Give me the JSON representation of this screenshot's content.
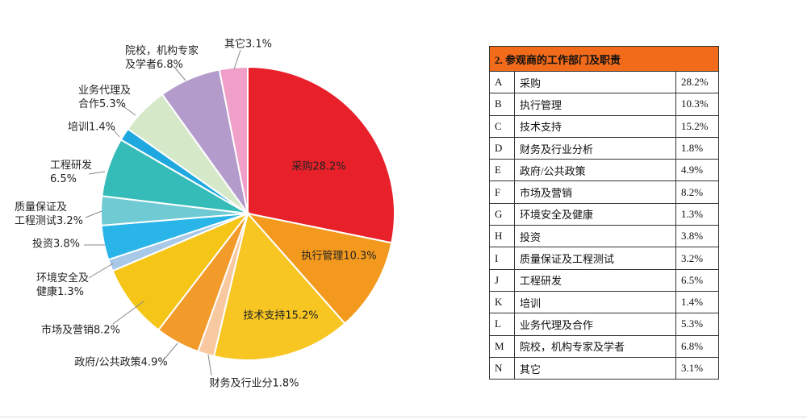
{
  "chart_data": {
    "type": "pie",
    "values": [
      28.2,
      10.3,
      15.2,
      1.8,
      4.9,
      8.2,
      1.3,
      3.8,
      3.2,
      6.5,
      1.4,
      5.3,
      6.8,
      3.1
    ],
    "value_labels": [
      "采购28.2%",
      "执行管理10.3%",
      "技术支持15.2%",
      "财务及行业分1.8%",
      "政府/公共政策4.9%",
      "市场及营销8.2%",
      "环境安全及\n健康1.3%",
      "投资3.8%",
      "质量保证及\n工程测试3.2%",
      "工程研发\n6.5%",
      "培训1.4%",
      "业务代理及\n合作5.3%",
      "院校，机构专家\n及学者6.8%",
      "其它3.1%"
    ],
    "colors": [
      "#e8202a",
      "#f39a1e",
      "#f7c623",
      "#f8c9a0",
      "#f29a2a",
      "#f5c518",
      "#a8c8e8",
      "#29b5e8",
      "#6fcad3",
      "#36bcb8",
      "#1fa8e0",
      "#d5e8c8",
      "#b39ccb",
      "#f0a0c8"
    ]
  },
  "table": {
    "title": "2. 参观商的工作部门及职责",
    "rows": [
      [
        "A",
        "采购",
        "28.2%"
      ],
      [
        "B",
        "执行管理",
        "10.3%"
      ],
      [
        "C",
        "技术支持",
        "15.2%"
      ],
      [
        "D",
        "财务及行业分析",
        "1.8%"
      ],
      [
        "E",
        "政府/公共政策",
        "4.9%"
      ],
      [
        "F",
        "市场及营销",
        "8.2%"
      ],
      [
        "G",
        "环境安全及健康",
        "1.3%"
      ],
      [
        "H",
        "投资",
        "3.8%"
      ],
      [
        "I",
        "质量保证及工程测试",
        "3.2%"
      ],
      [
        "J",
        "工程研发",
        "6.5%"
      ],
      [
        "K",
        "培训",
        "1.4%"
      ],
      [
        "L",
        "业务代理及合作",
        "5.3%"
      ],
      [
        "M",
        "院校，机构专家及学者",
        "6.8%"
      ],
      [
        "N",
        "其它",
        "3.1%"
      ]
    ]
  }
}
